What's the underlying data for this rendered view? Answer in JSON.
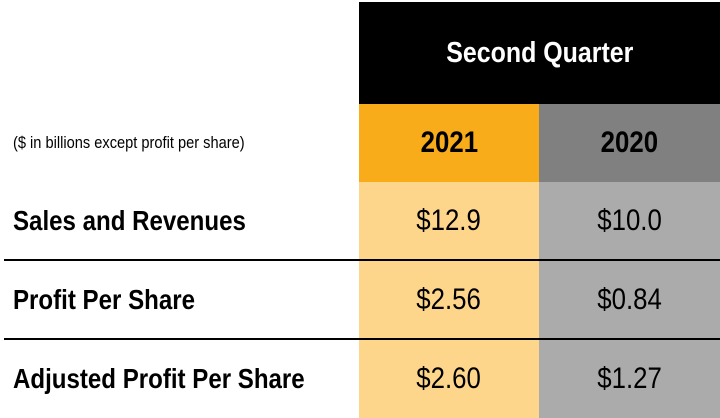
{
  "header": {
    "period": "Second Quarter",
    "note": "($ in billions except profit per share)",
    "years": [
      "2021",
      "2020"
    ]
  },
  "rows": [
    {
      "label": "Sales and Revenues",
      "v2021": "$12.9",
      "v2020": "$10.0"
    },
    {
      "label": "Profit Per Share",
      "v2021": "$2.56",
      "v2020": "$0.84"
    },
    {
      "label": "Adjusted Profit Per Share",
      "v2021": "$2.60",
      "v2020": "$1.27"
    }
  ],
  "colors": {
    "header_bg": "#000000",
    "year_2021": "#F8AC19",
    "year_2020": "#808080",
    "cell_2021": "#FDD68C",
    "cell_2020": "#ABABAB"
  }
}
